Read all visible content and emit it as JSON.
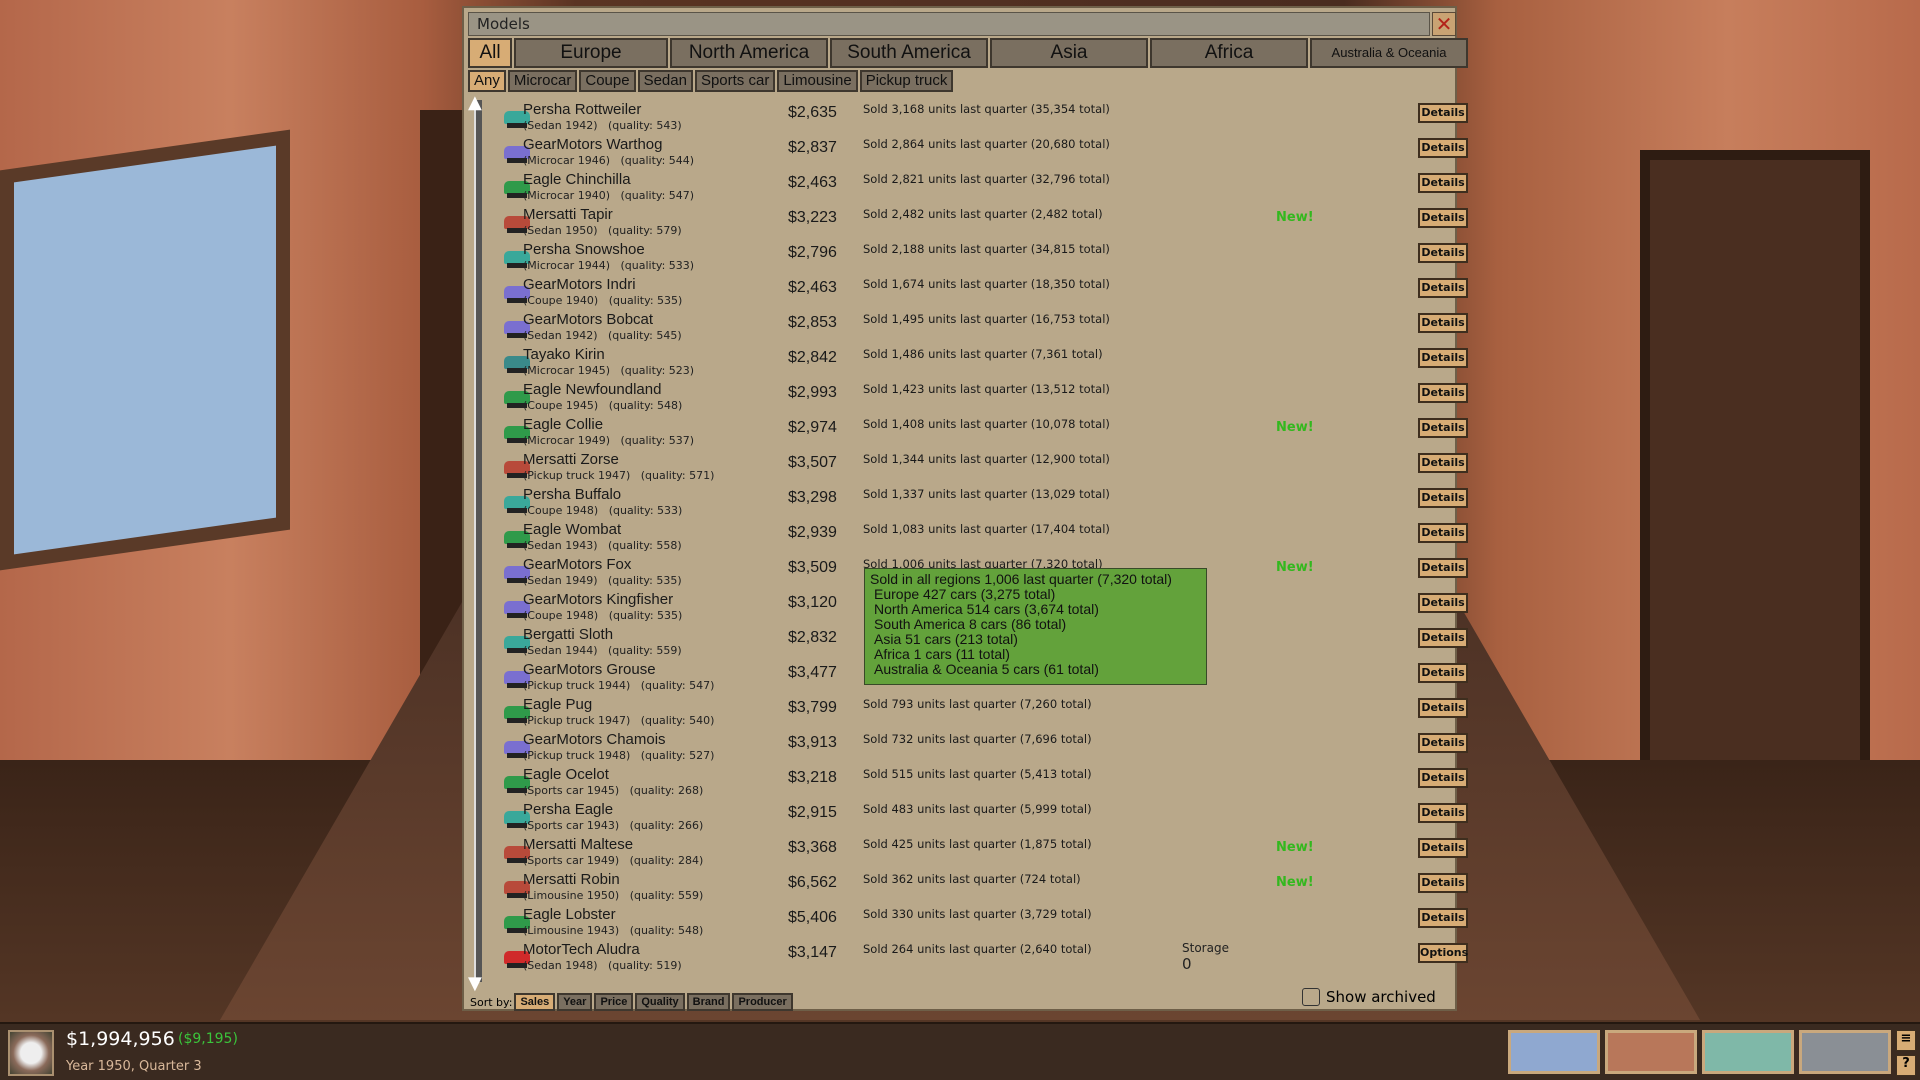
{
  "window": {
    "title": "Models",
    "close_icon": "close-icon"
  },
  "regions": [
    {
      "label": "All",
      "active": true
    },
    {
      "label": "Europe"
    },
    {
      "label": "North America"
    },
    {
      "label": "South America"
    },
    {
      "label": "Asia"
    },
    {
      "label": "Africa"
    },
    {
      "label": "Australia & Oceania"
    }
  ],
  "types": [
    {
      "label": "Any",
      "active": true
    },
    {
      "label": "Microcar"
    },
    {
      "label": "Coupe"
    },
    {
      "label": "Sedan"
    },
    {
      "label": "Sports car"
    },
    {
      "label": "Limousine"
    },
    {
      "label": "Pickup truck"
    }
  ],
  "colors": {
    "new": "#33b81e",
    "tooltip": "#63a23b",
    "button": "#d7ac75",
    "delta": "#3bc43b"
  },
  "models": [
    {
      "name": "Persha Rottweiler",
      "info": "(Sedan 1942)   (quality: 543)",
      "price": "$2,635",
      "sold": "Sold 3,168 units last quarter (35,354 total)",
      "new": "",
      "color": "#3aa89a",
      "button": "Details"
    },
    {
      "name": "GearMotors Warthog",
      "info": "(Microcar 1946)   (quality: 544)",
      "price": "$2,837",
      "sold": "Sold 2,864 units last quarter (20,680 total)",
      "new": "",
      "color": "#7a6fd0",
      "button": "Details"
    },
    {
      "name": "Eagle Chinchilla",
      "info": "(Microcar 1940)   (quality: 547)",
      "price": "$2,463",
      "sold": "Sold 2,821 units last quarter (32,796 total)",
      "new": "",
      "color": "#2f9a4a",
      "button": "Details"
    },
    {
      "name": "Mersatti Tapir",
      "info": "(Sedan 1950)   (quality: 579)",
      "price": "$3,223",
      "sold": "Sold 2,482 units last quarter (2,482 total)",
      "new": "New!",
      "color": "#b84a3a",
      "button": "Details"
    },
    {
      "name": "Persha Snowshoe",
      "info": "(Microcar 1944)   (quality: 533)",
      "price": "$2,796",
      "sold": "Sold 2,188 units last quarter (34,815 total)",
      "new": "",
      "color": "#3aa89a",
      "button": "Details"
    },
    {
      "name": "GearMotors Indri",
      "info": "(Coupe 1940)   (quality: 535)",
      "price": "$2,463",
      "sold": "Sold 1,674 units last quarter (18,350 total)",
      "new": "",
      "color": "#7a6fd0",
      "button": "Details"
    },
    {
      "name": "GearMotors Bobcat",
      "info": "(Sedan 1942)   (quality: 545)",
      "price": "$2,853",
      "sold": "Sold 1,495 units last quarter (16,753 total)",
      "new": "",
      "color": "#7a6fd0",
      "button": "Details"
    },
    {
      "name": "Tayako Kirin",
      "info": "(Microcar 1945)   (quality: 523)",
      "price": "$2,842",
      "sold": "Sold 1,486 units last quarter (7,361 total)",
      "new": "",
      "color": "#3a8a8a",
      "button": "Details"
    },
    {
      "name": "Eagle Newfoundland",
      "info": "(Coupe 1945)   (quality: 548)",
      "price": "$2,993",
      "sold": "Sold 1,423 units last quarter (13,512 total)",
      "new": "",
      "color": "#2f9a4a",
      "button": "Details"
    },
    {
      "name": "Eagle Collie",
      "info": "(Microcar 1949)   (quality: 537)",
      "price": "$2,974",
      "sold": "Sold 1,408 units last quarter (10,078 total)",
      "new": "New!",
      "color": "#2f9a4a",
      "button": "Details"
    },
    {
      "name": "Mersatti Zorse",
      "info": "(Pickup truck 1947)   (quality: 571)",
      "price": "$3,507",
      "sold": "Sold 1,344 units last quarter (12,900 total)",
      "new": "",
      "color": "#b84a3a",
      "button": "Details"
    },
    {
      "name": "Persha Buffalo",
      "info": "(Coupe 1948)   (quality: 533)",
      "price": "$3,298",
      "sold": "Sold 1,337 units last quarter (13,029 total)",
      "new": "",
      "color": "#3aa89a",
      "button": "Details"
    },
    {
      "name": "Eagle Wombat",
      "info": "(Sedan 1943)   (quality: 558)",
      "price": "$2,939",
      "sold": "Sold 1,083 units last quarter (17,404 total)",
      "new": "",
      "color": "#2f9a4a",
      "button": "Details"
    },
    {
      "name": "GearMotors Fox",
      "info": "(Sedan 1949)   (quality: 535)",
      "price": "$3,509",
      "sold": "Sold 1,006 units last quarter (7,320 total)",
      "new": "New!",
      "color": "#7a6fd0",
      "button": "Details"
    },
    {
      "name": "GearMotors Kingfisher",
      "info": "(Coupe 1948)   (quality: 535)",
      "price": "$3,120",
      "sold": "",
      "new": "",
      "color": "#7a6fd0",
      "button": "Details"
    },
    {
      "name": "Bergatti Sloth",
      "info": "(Sedan 1944)   (quality: 559)",
      "price": "$2,832",
      "sold": "",
      "new": "",
      "color": "#3aa89a",
      "button": "Details"
    },
    {
      "name": "GearMotors Grouse",
      "info": "(Pickup truck 1944)   (quality: 547)",
      "price": "$3,477",
      "sold": "",
      "new": "",
      "color": "#7a6fd0",
      "button": "Details"
    },
    {
      "name": "Eagle Pug",
      "info": "(Pickup truck 1947)   (quality: 540)",
      "price": "$3,799",
      "sold": "Sold 793 units last quarter (7,260 total)",
      "new": "",
      "color": "#2f9a4a",
      "button": "Details"
    },
    {
      "name": "GearMotors Chamois",
      "info": "(Pickup truck 1948)   (quality: 527)",
      "price": "$3,913",
      "sold": "Sold 732 units last quarter (7,696 total)",
      "new": "",
      "color": "#7a6fd0",
      "button": "Details"
    },
    {
      "name": "Eagle Ocelot",
      "info": "(Sports car 1945)   (quality: 268)",
      "price": "$3,218",
      "sold": "Sold 515 units last quarter (5,413 total)",
      "new": "",
      "color": "#2f9a4a",
      "button": "Details"
    },
    {
      "name": "Persha Eagle",
      "info": "(Sports car 1943)   (quality: 266)",
      "price": "$2,915",
      "sold": "Sold 483 units last quarter (5,999 total)",
      "new": "",
      "color": "#3aa89a",
      "button": "Details"
    },
    {
      "name": "Mersatti Maltese",
      "info": "(Sports car 1949)   (quality: 284)",
      "price": "$3,368",
      "sold": "Sold 425 units last quarter (1,875 total)",
      "new": "New!",
      "color": "#b84a3a",
      "button": "Details"
    },
    {
      "name": "Mersatti Robin",
      "info": "(Limousine 1950)   (quality: 559)",
      "price": "$6,562",
      "sold": "Sold 362 units last quarter (724 total)",
      "new": "New!",
      "color": "#b84a3a",
      "button": "Details"
    },
    {
      "name": "Eagle Lobster",
      "info": "(Limousine 1943)   (quality: 548)",
      "price": "$5,406",
      "sold": "Sold 330 units last quarter (3,729 total)",
      "new": "",
      "color": "#2f9a4a",
      "button": "Details"
    },
    {
      "name": "MotorTech Aludra",
      "info": "(Sedan 1948)   (quality: 519)",
      "price": "$3,147",
      "sold": "Sold 264 units last quarter (2,640 total)",
      "new": "",
      "color": "#d02a2a",
      "button": "Options",
      "storage_label": "Storage",
      "storage_value": "0"
    }
  ],
  "tooltip": {
    "lines": [
      "Sold in all regions 1,006 last quarter (7,320 total)",
      "Europe 427 cars (3,275 total)",
      "North America 514 cars (3,674 total)",
      "South America 8 cars (86 total)",
      "Asia 51 cars (213 total)",
      "Africa 1 cars (11 total)",
      "Australia & Oceania 5 cars (61 total)"
    ]
  },
  "sort": {
    "label": "Sort by:",
    "options": [
      {
        "label": "Sales",
        "active": true
      },
      {
        "label": "Year"
      },
      {
        "label": "Price"
      },
      {
        "label": "Quality"
      },
      {
        "label": "Brand"
      },
      {
        "label": "Producer"
      }
    ]
  },
  "show_archived": {
    "label": "Show archived",
    "checked": false
  },
  "status": {
    "money": "$1,994,956",
    "delta": "($9,195)",
    "date": "Year 1950, Quarter 3"
  },
  "nav": [
    {
      "icon": "world-map-icon"
    },
    {
      "icon": "office-icon"
    },
    {
      "icon": "research-lab-icon"
    },
    {
      "icon": "factory-icon"
    }
  ],
  "side_buttons": {
    "menu": "menu-icon",
    "help": "?"
  }
}
